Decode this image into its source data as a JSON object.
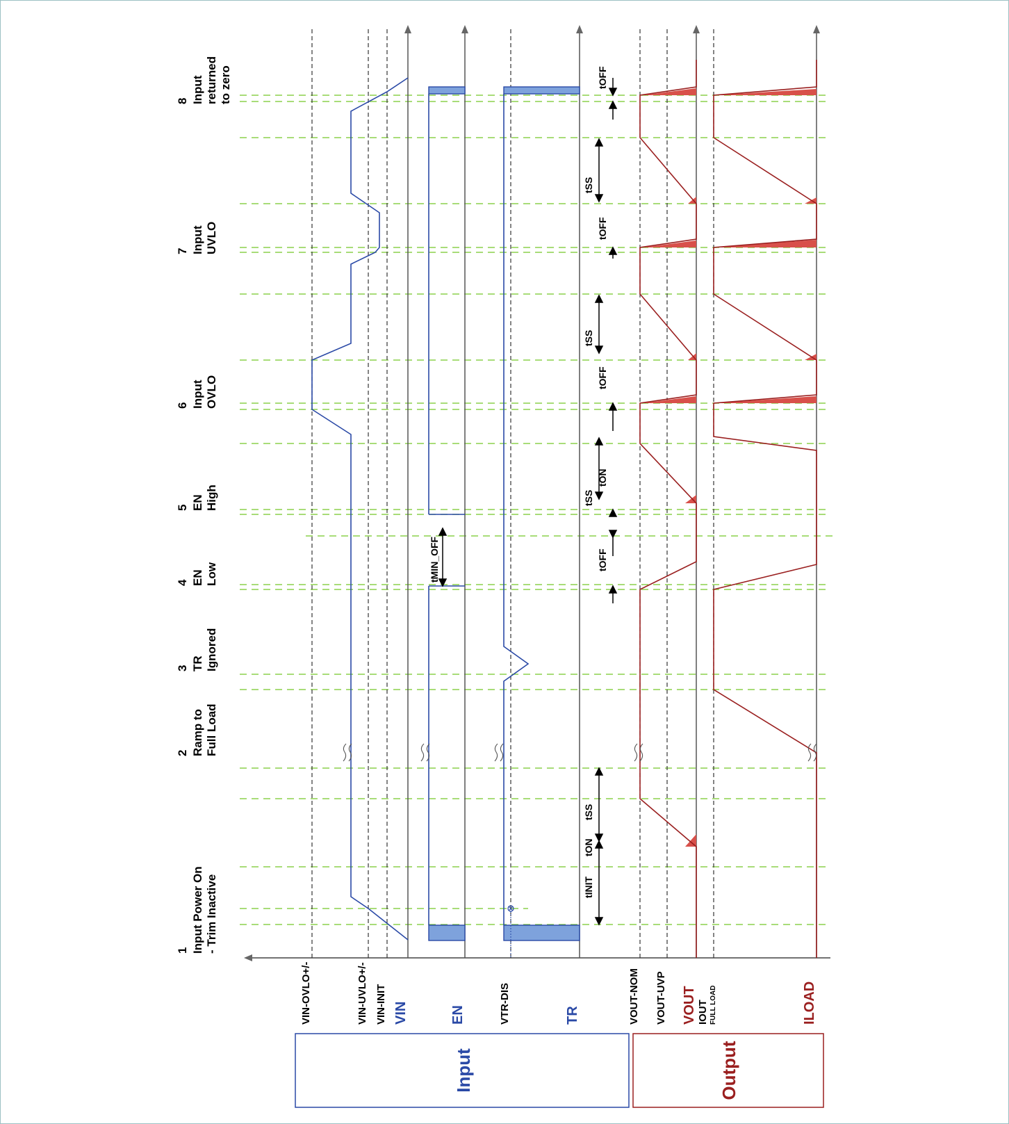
{
  "colors": {
    "input": "#2a49a6",
    "output": "#9a1f1f",
    "pulse_fill": "#7ea2dc",
    "tail_fill": "#d8504a",
    "green_dash": "#8cd04c",
    "axis": "#444444",
    "threshold": "#333333",
    "frame": "#9cc0c4"
  },
  "boxes": {
    "input_label": "Input",
    "output_label": "Output"
  },
  "signals": {
    "vin": "VIN",
    "en": "EN",
    "tr": "TR",
    "vout": "VOUT",
    "iload": "ILOAD"
  },
  "thresholds": {
    "vin_ovlo": "VIN-OVLO+/-",
    "vin_uvlo": "VIN-UVLO+/-",
    "vin_init": "VIN-INIT",
    "vtr_dis": "VTR-DIS",
    "vout_nom": "VOUT-NOM",
    "vout_uvp": "VOUT-UVP",
    "iout_full_load": "IOUT",
    "iout_full_load_sub": "FULL LOAD"
  },
  "events": [
    {
      "num": "1",
      "line1": "Input Power On",
      "line2": "- Trim Inactive",
      "line3": ""
    },
    {
      "num": "2",
      "line1": "Ramp to",
      "line2": "Full Load",
      "line3": ""
    },
    {
      "num": "3",
      "line1": "TR",
      "line2": "Ignored",
      "line3": ""
    },
    {
      "num": "4",
      "line1": "EN",
      "line2": "Low",
      "line3": ""
    },
    {
      "num": "5",
      "line1": "EN",
      "line2": "High",
      "line3": ""
    },
    {
      "num": "6",
      "line1": "Input",
      "line2": "OVLO",
      "line3": ""
    },
    {
      "num": "7",
      "line1": "Input",
      "line2": "UVLO",
      "line3": ""
    },
    {
      "num": "8",
      "line1": "Input",
      "line2": "returned",
      "line3": "to zero"
    }
  ],
  "timing_labels": {
    "t_init": "tINIT",
    "t_on": "tON",
    "t_ss": "tSS",
    "t_off": "tOFF",
    "t_min_off": "tMIN_OFF"
  }
}
